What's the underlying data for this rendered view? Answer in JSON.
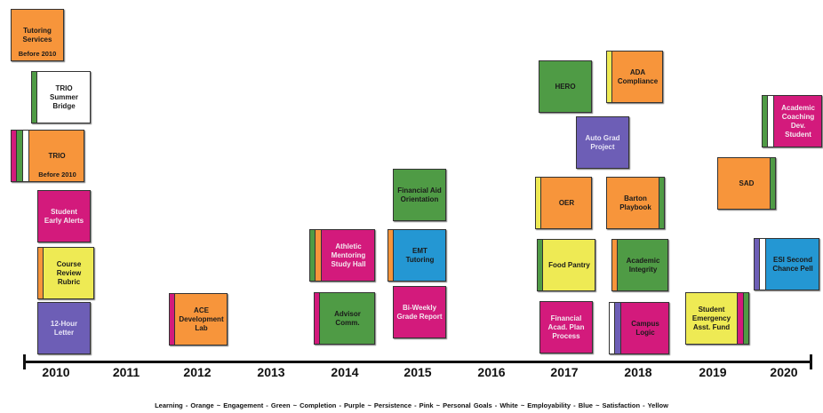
{
  "colors": {
    "orange": "#f7953b",
    "green": "#4f9b45",
    "purple": "#6d5eb6",
    "pink": "#d31a7c",
    "white": "#ffffff",
    "blue": "#2497d3",
    "yellow": "#eeea54"
  },
  "years": [
    "2010",
    "2011",
    "2012",
    "2013",
    "2014",
    "2015",
    "2016",
    "2017",
    "2018",
    "2019",
    "2020"
  ],
  "legend": "Learning - Orange   ~   Engagement - Green   ~   Completion - Purple   ~   Persistence - Pink   ~   Personal Goals - White   ~   Employability - Blue   ~   Satisfaction - Yellow",
  "initiatives": [
    {
      "id": "tutoring-services",
      "label": "Tutoring\nServices",
      "note": "Before 2010",
      "fill": "orange",
      "stripes": []
    },
    {
      "id": "trio-summer-bridge",
      "label": "TRIO\nSummer\nBridge",
      "note": "",
      "fill": "white",
      "stripes": [
        "green"
      ]
    },
    {
      "id": "trio",
      "label": "TRIO",
      "note": "Before 2010",
      "fill": "orange",
      "stripes": [
        "pink",
        "green",
        "white"
      ]
    },
    {
      "id": "student-early-alerts",
      "label": "Student\nEarly Alerts",
      "note": "",
      "fill": "pink",
      "stripes": []
    },
    {
      "id": "course-review-rubric",
      "label": "Course\nReview\nRubric",
      "note": "",
      "fill": "yellow",
      "stripes": [
        "orange"
      ]
    },
    {
      "id": "12-hour-letter",
      "label": "12-Hour\nLetter",
      "note": "",
      "fill": "purple",
      "stripes": []
    },
    {
      "id": "ace-development-lab",
      "label": "ACE\nDevelopment\nLab",
      "note": "",
      "fill": "orange",
      "stripes": [
        "pink"
      ]
    },
    {
      "id": "athletic-mentoring-study-hall",
      "label": "Athletic\nMentoring\nStudy Hall",
      "note": "",
      "fill": "pink",
      "stripes": [
        "green",
        "orange"
      ]
    },
    {
      "id": "advisor-comm",
      "label": "Advisor\nComm.",
      "note": "",
      "fill": "green",
      "stripes": [
        "pink"
      ]
    },
    {
      "id": "financial-aid-orientation",
      "label": "Financial Aid\nOrientation",
      "note": "",
      "fill": "green",
      "stripes": []
    },
    {
      "id": "emt-tutoring",
      "label": "EMT\nTutoring",
      "note": "",
      "fill": "blue",
      "stripes": [
        "orange"
      ]
    },
    {
      "id": "bi-weekly-grade-report",
      "label": "Bi-Weekly\nGrade Report",
      "note": "",
      "fill": "pink",
      "stripes": []
    },
    {
      "id": "hero",
      "label": "HERO",
      "note": "",
      "fill": "green",
      "stripes": []
    },
    {
      "id": "oer",
      "label": "OER",
      "note": "",
      "fill": "orange",
      "stripes": [
        "yellow"
      ]
    },
    {
      "id": "food-pantry",
      "label": "Food Pantry",
      "note": "",
      "fill": "yellow",
      "stripes": [
        "green"
      ]
    },
    {
      "id": "financial-acad-plan-process",
      "label": "Financial\nAcad. Plan\nProcess",
      "note": "",
      "fill": "pink",
      "stripes": []
    },
    {
      "id": "ada-compliance",
      "label": "ADA\nCompliance",
      "note": "",
      "fill": "orange",
      "stripes": [
        "yellow"
      ]
    },
    {
      "id": "auto-grad-project",
      "label": "Auto Grad\nProject",
      "note": "",
      "fill": "purple",
      "stripes": []
    },
    {
      "id": "barton-playbook",
      "label": "Barton\nPlaybook",
      "note": "",
      "fill": "orange",
      "stripes": [],
      "right_stripe": "green"
    },
    {
      "id": "academic-integrity",
      "label": "Academic\nIntegrity",
      "note": "",
      "fill": "green",
      "stripes": [
        "orange"
      ]
    },
    {
      "id": "campus-logic",
      "label": "Campus\nLogic",
      "note": "",
      "fill": "pink",
      "stripes": [
        "white",
        "purple"
      ]
    },
    {
      "id": "sad",
      "label": "SAD",
      "note": "",
      "fill": "orange",
      "stripes": [],
      "right_stripe": "green"
    },
    {
      "id": "student-emergency-asst-fund",
      "label": "Student\nEmergency\nAsst. Fund",
      "note": "",
      "fill": "yellow",
      "stripes": [],
      "right_stripe": "pink",
      "right_stripe2": "green"
    },
    {
      "id": "academic-coaching-dev-student",
      "label": "Academic\nCoaching\nDev. Student",
      "note": "",
      "fill": "pink",
      "stripes": [
        "green",
        "white"
      ]
    },
    {
      "id": "esi-second-chance-pell",
      "label": "ESI Second\nChance Pell",
      "note": "",
      "fill": "blue",
      "stripes": [
        "purple",
        "white"
      ]
    }
  ]
}
